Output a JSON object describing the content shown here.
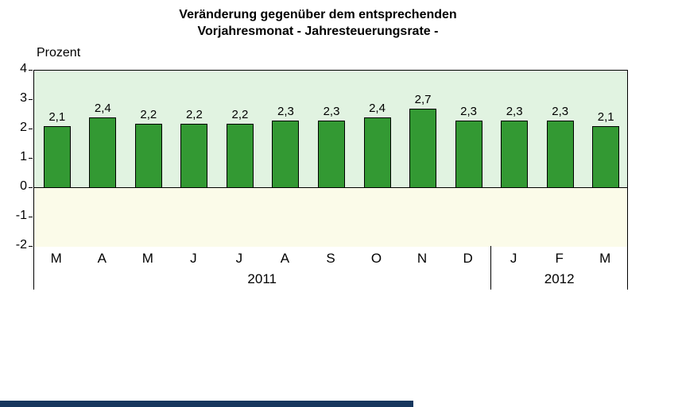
{
  "title": {
    "line1": "Veränderung gegenüber dem entsprechenden",
    "line2": "Vorjahresmonat - Jahresteuerungsrate -"
  },
  "chart_data": {
    "type": "bar",
    "ylabel": "Prozent",
    "categories": [
      "M",
      "A",
      "M",
      "J",
      "J",
      "A",
      "S",
      "O",
      "N",
      "D",
      "J",
      "F",
      "M"
    ],
    "values": [
      2.1,
      2.4,
      2.2,
      2.2,
      2.2,
      2.3,
      2.3,
      2.4,
      2.7,
      2.3,
      2.3,
      2.3,
      2.1
    ],
    "value_labels": [
      "2,1",
      "2,4",
      "2,2",
      "2,2",
      "2,2",
      "2,3",
      "2,3",
      "2,4",
      "2,7",
      "2,3",
      "2,3",
      "2,3",
      "2,1"
    ],
    "groups": [
      {
        "year": "2011",
        "count": 10
      },
      {
        "year": "2012",
        "count": 3
      }
    ],
    "ylim": [
      -2,
      4
    ],
    "yticks": [
      4,
      3,
      2,
      1,
      0,
      -1,
      -2
    ],
    "grid": false,
    "legend": false,
    "colors": {
      "bar_fill": "#339933",
      "bar_border": "#000000",
      "bg_positive": "#e1f3e1",
      "bg_negative": "#fbfbe9",
      "footer_strip": "#17375e"
    }
  }
}
